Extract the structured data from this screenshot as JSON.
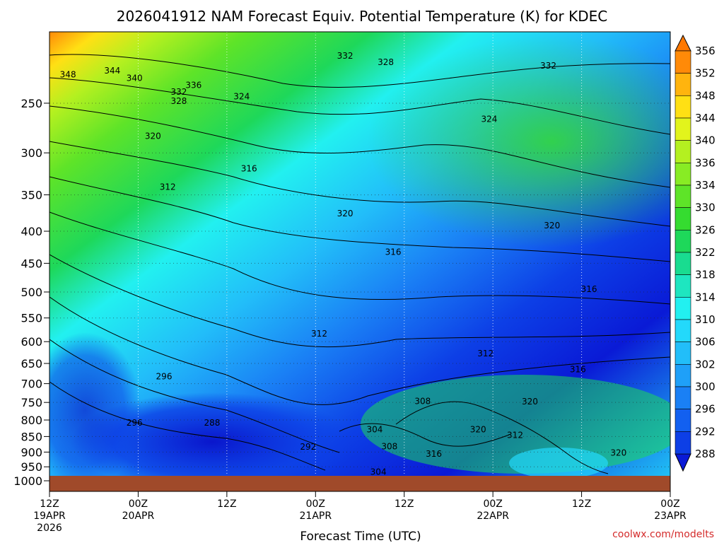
{
  "chart_data": {
    "type": "heatmap",
    "title": "2026041912 NAM Forecast Equiv. Potential Temperature (K) for KDEC",
    "xlabel": "Forecast Time (UTC)",
    "ylabel": "",
    "credit": "coolwx.com/modelts",
    "x_axis": {
      "range_hours": [
        0,
        84
      ],
      "ticks": [
        {
          "hour": 0,
          "line1": "12Z",
          "line2": "19APR",
          "line3": "2026"
        },
        {
          "hour": 12,
          "line1": "00Z",
          "line2": "20APR",
          "line3": ""
        },
        {
          "hour": 24,
          "line1": "12Z",
          "line2": "",
          "line3": ""
        },
        {
          "hour": 36,
          "line1": "00Z",
          "line2": "21APR",
          "line3": ""
        },
        {
          "hour": 48,
          "line1": "12Z",
          "line2": "",
          "line3": ""
        },
        {
          "hour": 60,
          "line1": "00Z",
          "line2": "22APR",
          "line3": ""
        },
        {
          "hour": 72,
          "line1": "12Z",
          "line2": "",
          "line3": ""
        },
        {
          "hour": 84,
          "line1": "00Z",
          "line2": "23APR",
          "line3": ""
        }
      ]
    },
    "y_axis": {
      "units": "hPa",
      "direction": "pressure (decreasing upward)",
      "range": [
        1000,
        200
      ],
      "ticks": [
        1000,
        950,
        900,
        850,
        800,
        750,
        700,
        650,
        600,
        550,
        500,
        450,
        400,
        350,
        300,
        250
      ]
    },
    "grid": true,
    "colorbar": {
      "placement": "right",
      "levels": [
        288,
        292,
        296,
        300,
        302,
        306,
        310,
        314,
        318,
        322,
        326,
        330,
        334,
        336,
        340,
        344,
        348,
        352,
        356
      ],
      "colors": [
        "#0a1ad6",
        "#0d3fe6",
        "#1260f0",
        "#1a80f5",
        "#1fa0f8",
        "#22bef9",
        "#23d9fb",
        "#22f0f0",
        "#1ee6c0",
        "#19dc90",
        "#1ed85a",
        "#35dc30",
        "#5ee428",
        "#88ec24",
        "#b4f020",
        "#e2f41c",
        "#ffe014",
        "#ffb40e",
        "#ff8a08",
        "#ff7800"
      ]
    },
    "contour_labels": [
      {
        "value": "348",
        "hour": 2.5,
        "p": 225
      },
      {
        "value": "344",
        "hour": 8.5,
        "p": 222
      },
      {
        "value": "340",
        "hour": 11.5,
        "p": 228
      },
      {
        "value": "336",
        "hour": 19.5,
        "p": 234
      },
      {
        "value": "332",
        "hour": 17.5,
        "p": 240
      },
      {
        "value": "328",
        "hour": 17.5,
        "p": 248
      },
      {
        "value": "324",
        "hour": 26,
        "p": 244
      },
      {
        "value": "332",
        "hour": 40,
        "p": 210
      },
      {
        "value": "328",
        "hour": 45.5,
        "p": 215
      },
      {
        "value": "332",
        "hour": 67.5,
        "p": 218
      },
      {
        "value": "324",
        "hour": 59.5,
        "p": 265
      },
      {
        "value": "320",
        "hour": 14,
        "p": 282
      },
      {
        "value": "316",
        "hour": 27,
        "p": 318
      },
      {
        "value": "312",
        "hour": 16,
        "p": 340
      },
      {
        "value": "320",
        "hour": 40,
        "p": 375
      },
      {
        "value": "320",
        "hour": 68,
        "p": 392
      },
      {
        "value": "316",
        "hour": 46.5,
        "p": 432
      },
      {
        "value": "316",
        "hour": 73,
        "p": 495
      },
      {
        "value": "312",
        "hour": 36.5,
        "p": 583
      },
      {
        "value": "312",
        "hour": 59,
        "p": 627
      },
      {
        "value": "316",
        "hour": 71.5,
        "p": 664
      },
      {
        "value": "296",
        "hour": 15.5,
        "p": 682
      },
      {
        "value": "308",
        "hour": 50.5,
        "p": 747
      },
      {
        "value": "320",
        "hour": 65,
        "p": 748
      },
      {
        "value": "296",
        "hour": 11.5,
        "p": 808
      },
      {
        "value": "288",
        "hour": 22,
        "p": 808
      },
      {
        "value": "304",
        "hour": 44,
        "p": 828
      },
      {
        "value": "320",
        "hour": 58,
        "p": 828
      },
      {
        "value": "312",
        "hour": 63,
        "p": 846
      },
      {
        "value": "292",
        "hour": 35,
        "p": 883
      },
      {
        "value": "308",
        "hour": 46,
        "p": 882
      },
      {
        "value": "316",
        "hour": 52,
        "p": 906
      },
      {
        "value": "320",
        "hour": 77,
        "p": 903
      },
      {
        "value": "304",
        "hour": 44.5,
        "p": 968
      }
    ]
  }
}
